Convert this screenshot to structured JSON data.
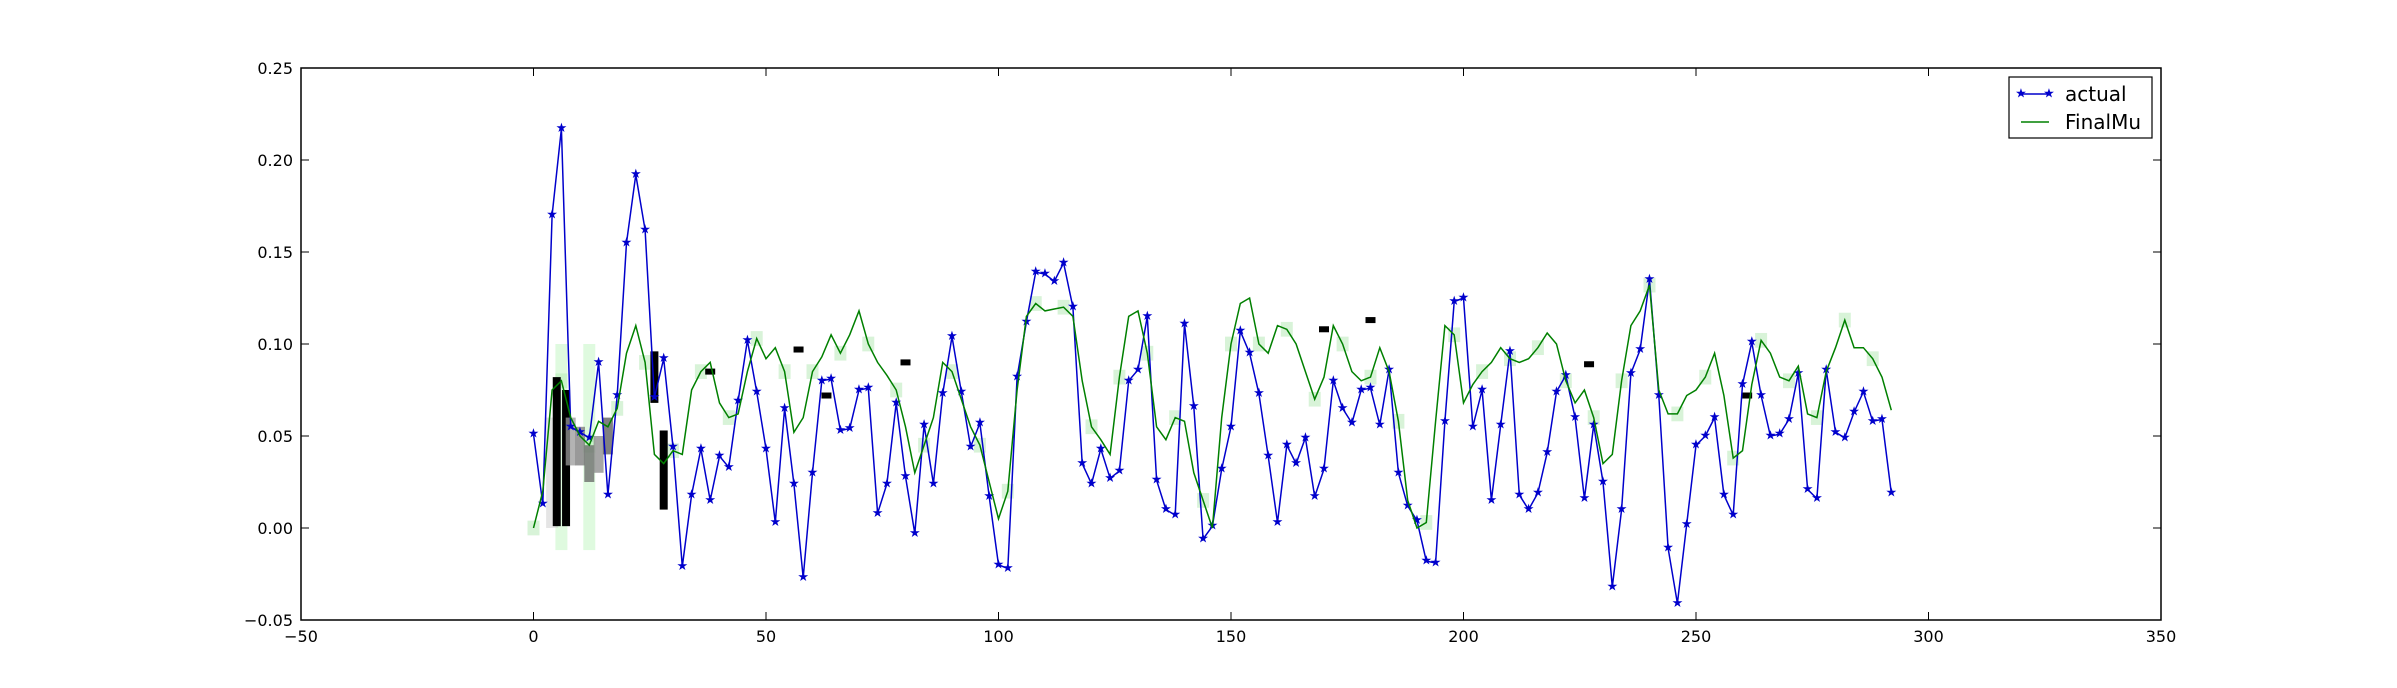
{
  "chart_data": {
    "type": "line",
    "xlim": [
      -50,
      350
    ],
    "ylim": [
      -0.05,
      0.25
    ],
    "xticks": [
      -50,
      0,
      50,
      100,
      150,
      200,
      250,
      300,
      350
    ],
    "yticks": [
      -0.05,
      0.0,
      0.05,
      0.1,
      0.15,
      0.2,
      0.25
    ],
    "xtick_labels": [
      "−50",
      "0",
      "50",
      "100",
      "150",
      "200",
      "250",
      "300",
      "350"
    ],
    "ytick_labels": [
      "−0.05",
      "0.00",
      "0.05",
      "0.10",
      "0.15",
      "0.20",
      "0.25"
    ],
    "grid": false,
    "legend_position": "top-right",
    "series": [
      {
        "name": "actual",
        "color": "#0000cc",
        "marker": "star",
        "x_start": 0,
        "x_step": 2,
        "values": [
          0.051,
          0.013,
          0.17,
          0.217,
          0.055,
          0.052,
          0.049,
          0.09,
          0.018,
          0.072,
          0.155,
          0.192,
          0.162,
          0.071,
          0.092,
          0.044,
          -0.021,
          0.018,
          0.043,
          0.015,
          0.039,
          0.033,
          0.069,
          0.102,
          0.074,
          0.043,
          0.003,
          0.065,
          0.024,
          -0.027,
          0.03,
          0.08,
          0.081,
          0.053,
          0.054,
          0.075,
          0.076,
          0.008,
          0.024,
          0.068,
          0.028,
          -0.003,
          0.056,
          0.024,
          0.073,
          0.104,
          0.074,
          0.044,
          0.057,
          0.017,
          -0.02,
          -0.022,
          0.082,
          0.112,
          0.139,
          0.138,
          0.134,
          0.144,
          0.12,
          0.035,
          0.024,
          0.043,
          0.027,
          0.031,
          0.08,
          0.086,
          0.115,
          0.026,
          0.01,
          0.007,
          0.111,
          0.066,
          -0.006,
          0.001,
          0.032,
          0.055,
          0.107,
          0.095,
          0.073,
          0.039,
          0.003,
          0.045,
          0.035,
          0.049,
          0.017,
          0.032,
          0.08,
          0.065,
          0.057,
          0.075,
          0.076,
          0.056,
          0.086,
          0.03,
          0.012,
          0.004,
          -0.018,
          -0.019,
          0.058,
          0.123,
          0.125,
          0.055,
          0.075,
          0.015,
          0.056,
          0.096,
          0.018,
          0.01,
          0.019,
          0.041,
          0.074,
          0.083,
          0.06,
          0.016,
          0.056,
          0.025,
          -0.032,
          0.01,
          0.084,
          0.097,
          0.135,
          0.072,
          -0.011,
          -0.041,
          0.002,
          0.045,
          0.05,
          0.06,
          0.018,
          0.007,
          0.078,
          0.101,
          0.072,
          0.05,
          0.051,
          0.059,
          0.084,
          0.021,
          0.016,
          0.086,
          0.052,
          0.049,
          0.063,
          0.074,
          0.058,
          0.059,
          0.019
        ]
      },
      {
        "name": "FinalMu",
        "color": "#008000",
        "marker": "none",
        "x_start": 0,
        "x_step": 2,
        "values": [
          0.0,
          0.02,
          0.075,
          0.08,
          0.06,
          0.05,
          0.045,
          0.058,
          0.055,
          0.065,
          0.095,
          0.11,
          0.09,
          0.04,
          0.035,
          0.042,
          0.04,
          0.075,
          0.085,
          0.09,
          0.068,
          0.06,
          0.062,
          0.085,
          0.103,
          0.092,
          0.098,
          0.085,
          0.052,
          0.06,
          0.085,
          0.093,
          0.105,
          0.095,
          0.105,
          0.118,
          0.1,
          0.09,
          0.083,
          0.075,
          0.055,
          0.03,
          0.045,
          0.06,
          0.09,
          0.085,
          0.07,
          0.055,
          0.045,
          0.025,
          0.005,
          0.02,
          0.075,
          0.115,
          0.122,
          0.118,
          0.119,
          0.12,
          0.115,
          0.08,
          0.055,
          0.048,
          0.04,
          0.082,
          0.115,
          0.118,
          0.095,
          0.055,
          0.048,
          0.06,
          0.058,
          0.03,
          0.015,
          0.0,
          0.06,
          0.1,
          0.122,
          0.125,
          0.1,
          0.095,
          0.11,
          0.108,
          0.1,
          0.085,
          0.07,
          0.082,
          0.11,
          0.1,
          0.085,
          0.08,
          0.082,
          0.098,
          0.085,
          0.058,
          0.015,
          0.0,
          0.003,
          0.058,
          0.11,
          0.105,
          0.068,
          0.078,
          0.085,
          0.09,
          0.098,
          0.092,
          0.09,
          0.092,
          0.098,
          0.106,
          0.1,
          0.08,
          0.068,
          0.075,
          0.06,
          0.035,
          0.04,
          0.08,
          0.11,
          0.118,
          0.132,
          0.075,
          0.062,
          0.062,
          0.072,
          0.075,
          0.082,
          0.095,
          0.072,
          0.038,
          0.042,
          0.078,
          0.102,
          0.095,
          0.082,
          0.08,
          0.088,
          0.062,
          0.06,
          0.085,
          0.098,
          0.113,
          0.098,
          0.098,
          0.092,
          0.082,
          0.064
        ]
      }
    ],
    "legend": [
      "actual",
      "FinalMu"
    ]
  }
}
